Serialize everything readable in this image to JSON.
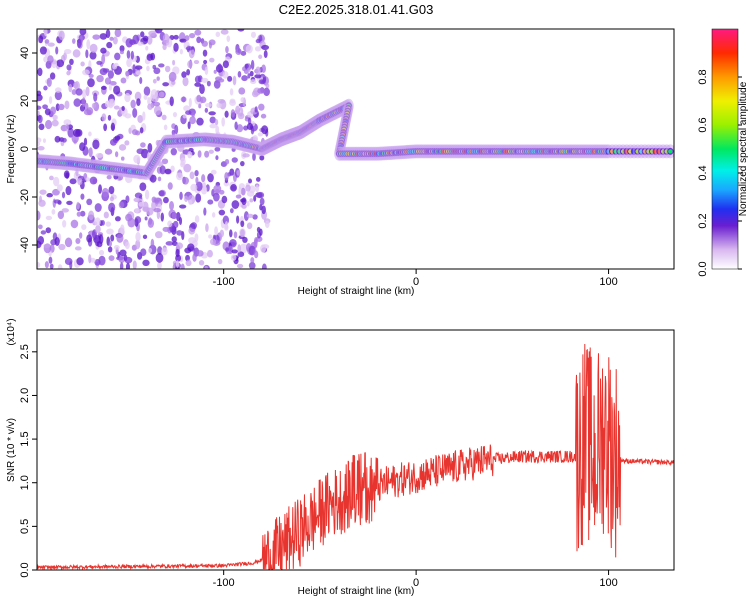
{
  "title": "C2E2.2025.318.01.41.G03",
  "chart_data": [
    {
      "type": "heatmap",
      "xlabel": "Height of straight line (km)",
      "ylabel": "Frequency (Hz)",
      "xlim": [
        -197,
        134
      ],
      "ylim": [
        -50,
        50
      ],
      "x_ticks": [
        -100,
        0,
        100
      ],
      "y_ticks": [
        -40,
        -20,
        0,
        20,
        40
      ],
      "colorbar": {
        "label": "Normalized spectral amplitude",
        "range": [
          0,
          1
        ],
        "ticks": [
          "0.0",
          "0.2",
          "0.4",
          "0.6",
          "0.8"
        ]
      },
      "ridge": [
        {
          "x": -197,
          "f": -5
        },
        {
          "x": -180,
          "f": -6
        },
        {
          "x": -160,
          "f": -8
        },
        {
          "x": -140,
          "f": -10
        },
        {
          "x": -130,
          "f": 3
        },
        {
          "x": -110,
          "f": 4
        },
        {
          "x": -95,
          "f": 3
        },
        {
          "x": -80,
          "f": 0
        },
        {
          "x": -70,
          "f": 4
        },
        {
          "x": -60,
          "f": 7
        },
        {
          "x": -50,
          "f": 12
        },
        {
          "x": -35,
          "f": 18
        },
        {
          "x": -40,
          "f": -2
        },
        {
          "x": -20,
          "f": -2
        },
        {
          "x": 0,
          "f": -1
        },
        {
          "x": 20,
          "f": -1
        },
        {
          "x": 40,
          "f": -1
        },
        {
          "x": 60,
          "f": -1
        },
        {
          "x": 80,
          "f": -1
        },
        {
          "x": 100,
          "f": -1
        },
        {
          "x": 134,
          "f": -1
        }
      ]
    },
    {
      "type": "line",
      "xlabel": "Height of straight line (km)",
      "ylabel": "SNR (10 * v/v)",
      "scale_label": "(x10⁴)",
      "xlim": [
        -197,
        134
      ],
      "ylim": [
        0,
        2.75
      ],
      "x_ticks": [
        -100,
        0,
        100
      ],
      "y_ticks": [
        "0.0",
        "0.5",
        "1.0",
        "1.5",
        "2.0",
        "2.5"
      ],
      "series_color": "#e8342e",
      "envelope": [
        {
          "x": -197,
          "y": 0.03
        },
        {
          "x": -150,
          "y": 0.04
        },
        {
          "x": -100,
          "y": 0.05
        },
        {
          "x": -85,
          "y": 0.08
        },
        {
          "x": -75,
          "y": 0.15
        },
        {
          "x": -65,
          "y": 0.35
        },
        {
          "x": -55,
          "y": 0.55
        },
        {
          "x": -45,
          "y": 0.75
        },
        {
          "x": -35,
          "y": 0.85
        },
        {
          "x": -25,
          "y": 0.9
        },
        {
          "x": -15,
          "y": 1.0
        },
        {
          "x": -5,
          "y": 1.05
        },
        {
          "x": 5,
          "y": 1.1
        },
        {
          "x": 15,
          "y": 1.15
        },
        {
          "x": 25,
          "y": 1.2
        },
        {
          "x": 35,
          "y": 1.25
        },
        {
          "x": 45,
          "y": 1.28
        },
        {
          "x": 55,
          "y": 1.3
        },
        {
          "x": 65,
          "y": 1.3
        },
        {
          "x": 75,
          "y": 1.3
        },
        {
          "x": 83,
          "y": 1.3
        },
        {
          "x": 88,
          "y": 1.5
        },
        {
          "x": 93,
          "y": 1.3
        },
        {
          "x": 98,
          "y": 1.6
        },
        {
          "x": 103,
          "y": 1.3
        },
        {
          "x": 108,
          "y": 1.25
        },
        {
          "x": 134,
          "y": 1.23
        }
      ]
    }
  ],
  "colors": {
    "axis": "#000000",
    "line": "#e8342e"
  }
}
